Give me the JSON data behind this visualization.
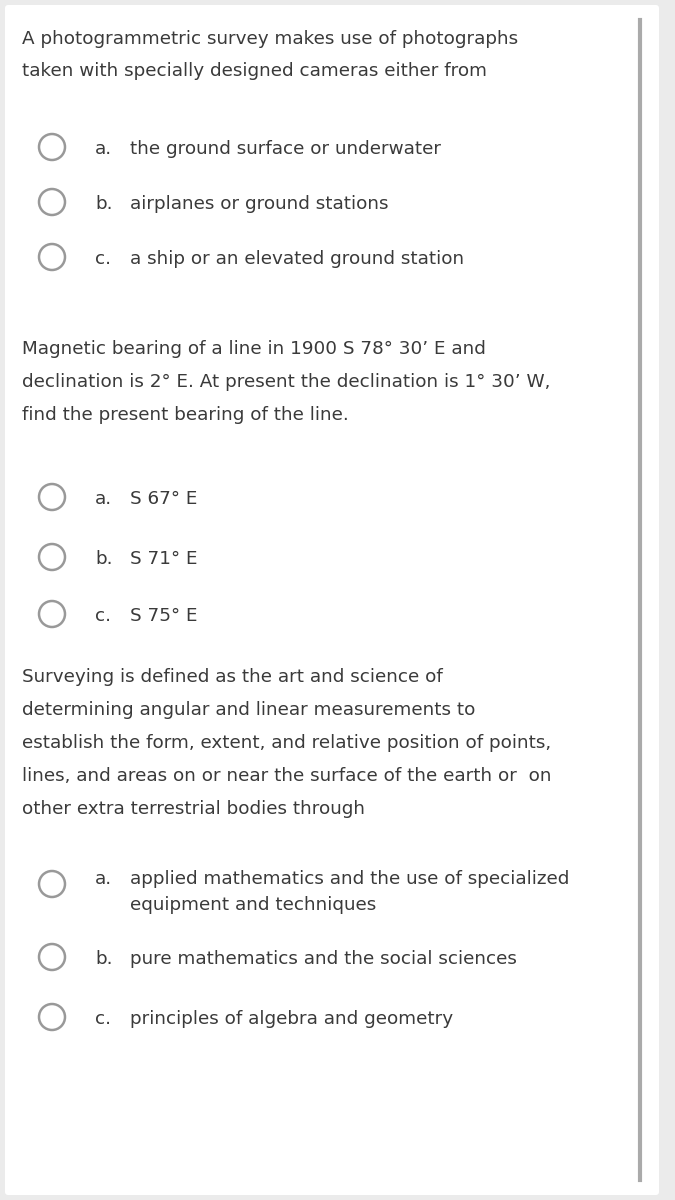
{
  "bg_color": "#ebebeb",
  "card_color": "#ffffff",
  "text_color": "#3a3a3a",
  "circle_color": "#999999",
  "border_color": "#aaaaaa",
  "font_size_body": 13.2,
  "q1_text_line1": "A photogrammetric survey makes use of photographs",
  "q1_text_line2": "taken with specially designed cameras either from",
  "q1_options": [
    [
      "a.",
      "the ground surface or underwater"
    ],
    [
      "b.",
      "airplanes or ground stations"
    ],
    [
      "c.",
      "a ship or an elevated ground station"
    ]
  ],
  "q2_text_parts": [
    "Magnetic bearing of a line in 1900 S 78° 30’ E and",
    "declination is 2° E. At present the declination is 1° 30’ W,",
    "find the present bearing of the line."
  ],
  "q2_options": [
    [
      "a.",
      "S 67° E"
    ],
    [
      "b.",
      "S 71° E"
    ],
    [
      "c.",
      "S 75° E"
    ]
  ],
  "q3_text_lines": [
    "Surveying is defined as the art and science of",
    "determining angular and linear measurements to",
    "establish the form, extent, and relative position of points,",
    "lines, and areas on or near the surface of the earth or  on",
    "other extra terrestrial bodies through"
  ],
  "q3_options": [
    [
      "a.",
      "applied mathematics and the use of specialized\nequipment and techniques"
    ],
    [
      "b.",
      "pure mathematics and the social sciences"
    ],
    [
      "c.",
      "principles of algebra and geometry"
    ]
  ]
}
